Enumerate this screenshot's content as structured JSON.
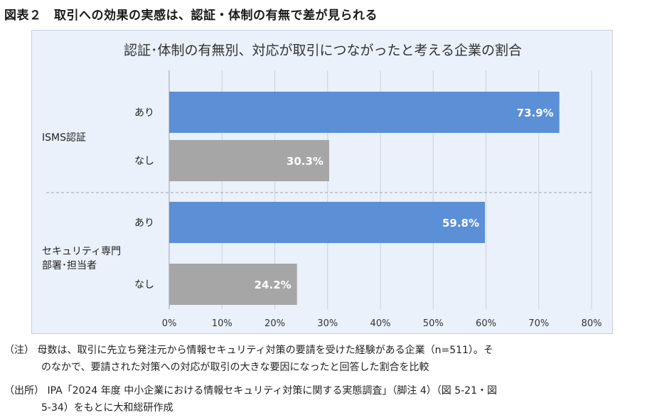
{
  "figure": {
    "title": "図表２　取引への効果の実感は、認証・体制の有無で差が見られる"
  },
  "chart_data": {
    "type": "bar",
    "orientation": "horizontal",
    "title": "認証･体制の有無別、対応が取引につながったと考える企業の割合",
    "groups": [
      {
        "label_lines": [
          "ISMS認証"
        ],
        "bars": [
          {
            "category": "あり",
            "value": 73.9,
            "label": "73.9%",
            "color": "#5b8fd6"
          },
          {
            "category": "なし",
            "value": 30.3,
            "label": "30.3%",
            "color": "#a6a6a6"
          }
        ]
      },
      {
        "label_lines": [
          "セキュリティ専門",
          "部署･担当者"
        ],
        "bars": [
          {
            "category": "あり",
            "value": 59.8,
            "label": "59.8%",
            "color": "#5b8fd6"
          },
          {
            "category": "なし",
            "value": 24.2,
            "label": "24.2%",
            "color": "#a6a6a6"
          }
        ]
      }
    ],
    "xlim": [
      0,
      80
    ],
    "xticks": [
      0,
      10,
      20,
      30,
      40,
      50,
      60,
      70,
      80
    ],
    "xtick_labels": [
      "0%",
      "10%",
      "20%",
      "30%",
      "40%",
      "50%",
      "60%",
      "70%",
      "80%"
    ],
    "grid": true,
    "legend": "none",
    "colors": {
      "yes": "#5b8fd6",
      "no": "#a6a6a6",
      "panel_bg": "#eaf1fa"
    }
  },
  "notes": {
    "note_prefix": "（注）",
    "note_line1": "母数は、取引に先立ち発注元から情報セキュリティ対策の要請を受けた経験がある企業（n=511）。そ",
    "note_line2": "のなかで、要請された対策への対応が取引の大きな要因になったと回答した割合を比較",
    "source_prefix": "（出所）",
    "source_line1": "IPA「2024 年度 中小企業における情報セキュリティ対策に関する実態調査」（脚注 4）（図 5-21・図",
    "source_line2": "5-34）をもとに大和総研作成"
  }
}
